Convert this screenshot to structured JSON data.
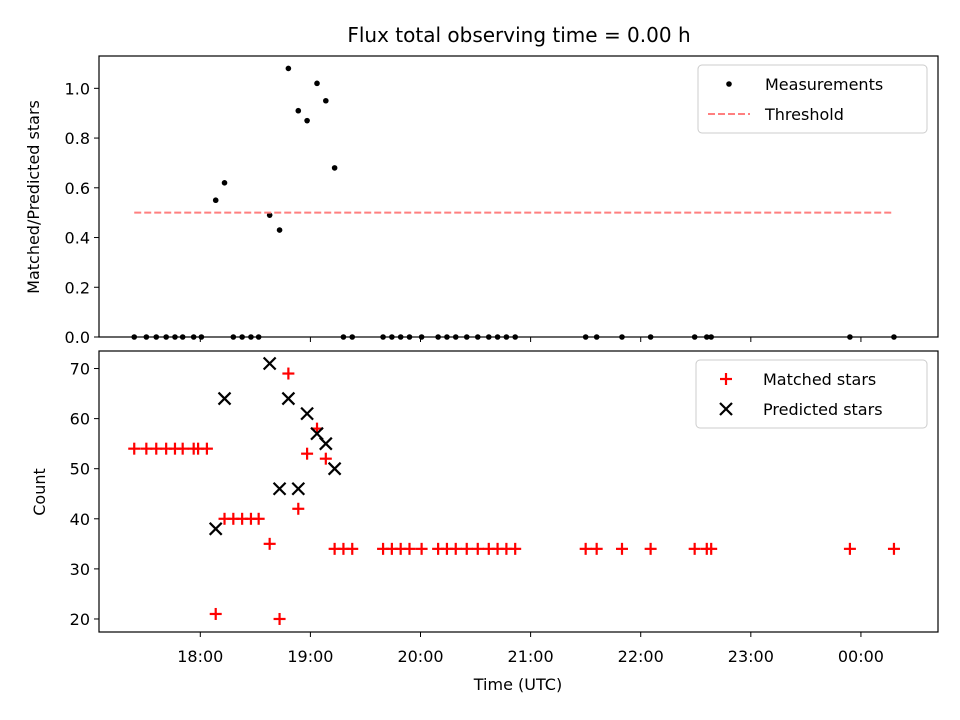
{
  "chart_data": {
    "type": "scatter",
    "title": "Flux total observing time = 0.00 h",
    "xlabel": "Time (UTC)",
    "x_ticks": [
      {
        "hour": 18,
        "label": "18:00"
      },
      {
        "hour": 19,
        "label": "19:00"
      },
      {
        "hour": 20,
        "label": "20:00"
      },
      {
        "hour": 21,
        "label": "21:00"
      },
      {
        "hour": 22,
        "label": "22:00"
      },
      {
        "hour": 23,
        "label": "23:00"
      },
      {
        "hour": 24,
        "label": "00:00"
      }
    ],
    "xlim": [
      17.08,
      24.7
    ],
    "panels": [
      {
        "name": "ratio",
        "ylabel": "Matched/Predicted stars",
        "ylim": [
          0,
          1.13
        ],
        "y_ticks": [
          "0.0",
          "0.2",
          "0.4",
          "0.6",
          "0.8",
          "1.0"
        ],
        "series": [
          {
            "name": "Measurements",
            "marker": "dot",
            "color": "#000000",
            "x": [
              17.4,
              17.51,
              17.6,
              17.69,
              17.77,
              17.84,
              17.94,
              18.01,
              18.14,
              18.22,
              18.3,
              18.38,
              18.46,
              18.53,
              18.63,
              18.72,
              18.8,
              18.89,
              18.97,
              19.06,
              19.14,
              19.22,
              19.3,
              19.38,
              19.66,
              19.74,
              19.82,
              19.9,
              20.01,
              20.16,
              20.24,
              20.32,
              20.42,
              20.52,
              20.62,
              20.7,
              20.78,
              20.86,
              21.5,
              21.6,
              21.83,
              22.09,
              22.49,
              22.6,
              22.64,
              23.9,
              24.3
            ],
            "y": [
              0,
              0,
              0,
              0,
              0,
              0,
              0,
              0,
              0.55,
              0.62,
              0,
              0,
              0,
              0,
              0.49,
              0.43,
              1.08,
              0.91,
              0.87,
              1.02,
              0.95,
              0.68,
              0,
              0,
              0,
              0,
              0,
              0,
              0,
              0,
              0,
              0,
              0,
              0,
              0,
              0,
              0,
              0,
              0,
              0,
              0,
              0,
              0,
              0,
              0,
              0,
              0
            ]
          },
          {
            "name": "Threshold",
            "marker": "dashed-line",
            "color": "#ff7f7f",
            "x": [
              17.4,
              24.3
            ],
            "y": [
              0.5,
              0.5
            ]
          }
        ],
        "legend": "top-right"
      },
      {
        "name": "counts",
        "ylabel": "Count",
        "ylim": [
          17.4,
          73.5
        ],
        "y_ticks": [
          "20",
          "30",
          "40",
          "50",
          "60",
          "70"
        ],
        "series": [
          {
            "name": "Matched stars",
            "marker": "plus",
            "color": "#ff0000",
            "x": [
              17.4,
              17.51,
              17.6,
              17.69,
              17.77,
              17.84,
              17.94,
              17.98,
              18.06,
              18.14,
              18.22,
              18.3,
              18.38,
              18.46,
              18.53,
              18.63,
              18.72,
              18.8,
              18.89,
              18.97,
              19.06,
              19.14,
              19.22,
              19.3,
              19.38,
              19.66,
              19.74,
              19.82,
              19.9,
              20.01,
              20.16,
              20.24,
              20.32,
              20.42,
              20.52,
              20.62,
              20.7,
              20.78,
              20.86,
              21.5,
              21.6,
              21.83,
              22.09,
              22.49,
              22.6,
              22.64,
              23.9,
              24.3
            ],
            "y": [
              54,
              54,
              54,
              54,
              54,
              54,
              54,
              54,
              54,
              21,
              40,
              40,
              40,
              40,
              40,
              35,
              20,
              69,
              42,
              53,
              58,
              52,
              34,
              34,
              34,
              34,
              34,
              34,
              34,
              34,
              34,
              34,
              34,
              34,
              34,
              34,
              34,
              34,
              34,
              34,
              34,
              34,
              34,
              34,
              34,
              34,
              34,
              34
            ]
          },
          {
            "name": "Predicted stars",
            "marker": "x",
            "color": "#000000",
            "x": [
              18.14,
              18.22,
              18.63,
              18.72,
              18.8,
              18.89,
              18.97,
              19.06,
              19.14,
              19.22
            ],
            "y": [
              38,
              64,
              71,
              46,
              64,
              46,
              61,
              57,
              55,
              50
            ]
          }
        ],
        "legend": "top-right"
      }
    ]
  }
}
